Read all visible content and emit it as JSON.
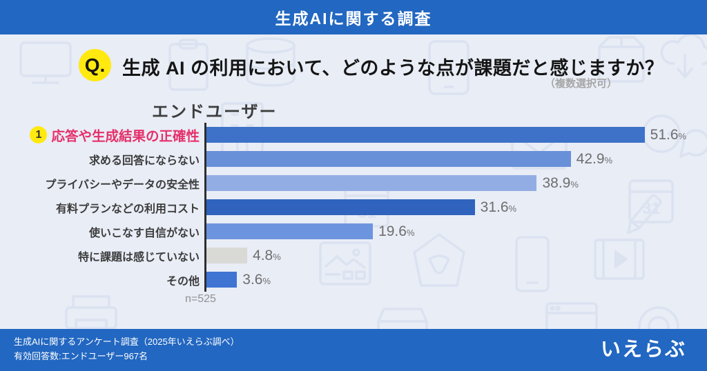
{
  "banner": {
    "title": "生成AIに関する調査"
  },
  "question": {
    "badge": "Q.",
    "text": "生成 AI の利用において、どのような点が課題だと感じますか？",
    "note": "（複数選択可）"
  },
  "chart_data": {
    "type": "bar",
    "orientation": "horizontal",
    "title": "エンドユーザー",
    "categories": [
      "応答や生成結果の正確性",
      "求める回答にならない",
      "プライバシーやデータの安全性",
      "有料プランなどの利用コスト",
      "使いこなす自信がない",
      "特に課題は感じていない",
      "その他"
    ],
    "values": [
      51.6,
      42.9,
      38.9,
      31.6,
      19.6,
      4.8,
      3.6
    ],
    "unit": "%",
    "xlim": [
      0,
      55
    ],
    "grid": false,
    "legend": "none",
    "sample_label": "n=525",
    "bar_colors": [
      "#3e71c8",
      "#6790d9",
      "#92ade4",
      "#2f63be",
      "#6d94de",
      "#d9d9d6",
      "#3f74d3"
    ],
    "highlight": {
      "rank": "1",
      "category": "応答や生成結果の正確性",
      "color": "#e5306a",
      "badge_color": "#ffe90f"
    }
  },
  "footer": {
    "line1": "生成AIに関するアンケート調査（2025年いえらぶ調べ）",
    "line2": "有効回答数:エンドユーザー967名",
    "logo": "いえらぶ"
  },
  "colors": {
    "banner_bg": "#2267c1",
    "page_bg": "#e9edf6",
    "axis": "#2d2d2d",
    "question_badge": "#ffe90f"
  }
}
